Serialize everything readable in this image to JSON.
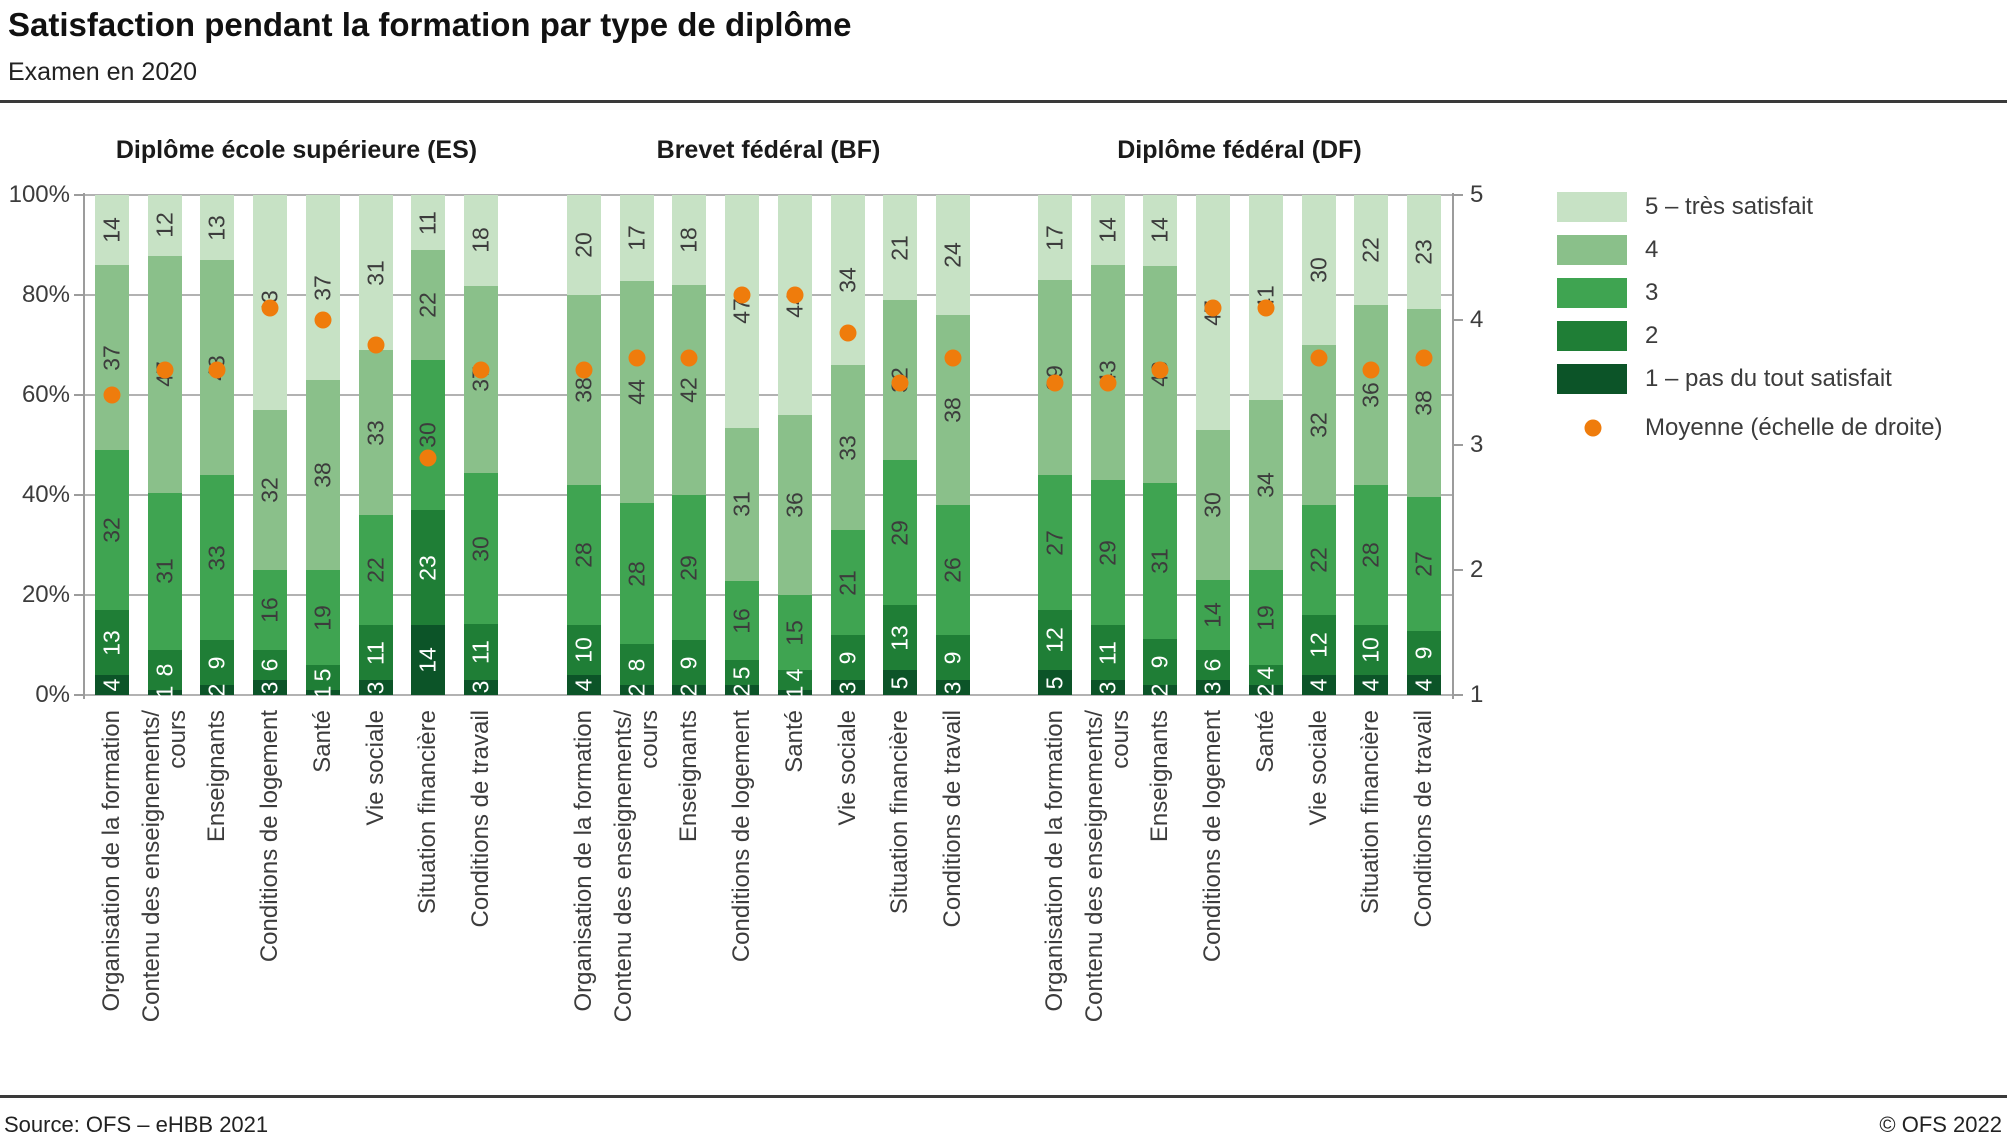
{
  "header": {
    "title": "Satisfaction pendant la formation par type de diplôme",
    "subtitle": "Examen en 2020"
  },
  "footer": {
    "source": "Source: OFS – eHBB 2021",
    "copyright": "© OFS 2022"
  },
  "legend": {
    "items": [
      {
        "label": "5 – très satisfait",
        "color": "#c7e2c5"
      },
      {
        "label": "4",
        "color": "#8ac08a"
      },
      {
        "label": "3",
        "color": "#3fa451"
      },
      {
        "label": "2",
        "color": "#1f7e36"
      },
      {
        "label": "1 – pas du tout satisfait",
        "color": "#0c5428"
      }
    ],
    "mean": {
      "label": "Moyenne  (échelle de droite)",
      "color": "#ef7c0c"
    }
  },
  "chart_data": {
    "type": "bar",
    "stacked": "percent",
    "title": "Satisfaction pendant la formation par type de diplôme",
    "subtitle": "Examen en 2020",
    "categories": [
      "Organisation de la formation",
      "Contenu des enseignements/\ncours",
      "Enseignants",
      "Conditions de logement",
      "Santé",
      "Vie sociale",
      "Situation financière",
      "Conditions de travail"
    ],
    "segments_bottom_to_top": [
      "1 – pas du tout satisfait",
      "2",
      "3",
      "4",
      "5 – très satisfait"
    ],
    "left_axis": {
      "ticks_top_to_bottom": [
        "100%",
        "80%",
        "60%",
        "40%",
        "20%",
        "0%"
      ],
      "range": [
        0,
        100
      ],
      "grid": true
    },
    "right_axis": {
      "ticks_top_to_bottom": [
        "5",
        "4",
        "3",
        "2",
        "1"
      ],
      "range": [
        1,
        5
      ],
      "label": "Moyenne  (échelle de droite)"
    },
    "groups": [
      {
        "title": "Diplôme école supérieure (ES)",
        "bars": [
          {
            "category": "Organisation de la formation",
            "values": [
              4,
              13,
              32,
              37,
              14
            ],
            "mean": 3.4
          },
          {
            "category": "Contenu des enseignements/cours",
            "values": [
              1,
              8,
              31,
              47,
              12
            ],
            "mean": 3.6
          },
          {
            "category": "Enseignants",
            "values": [
              2,
              9,
              33,
              43,
              13
            ],
            "mean": 3.6
          },
          {
            "category": "Conditions de logement",
            "values": [
              3,
              6,
              16,
              32,
              43
            ],
            "mean": 4.1
          },
          {
            "category": "Santé",
            "values": [
              1,
              5,
              19,
              38,
              37
            ],
            "mean": 4.0
          },
          {
            "category": "Vie sociale",
            "values": [
              3,
              11,
              22,
              33,
              31
            ],
            "mean": 3.8
          },
          {
            "category": "Situation financière",
            "values": [
              14,
              23,
              30,
              22,
              11
            ],
            "mean": 2.9
          },
          {
            "category": "Conditions de travail",
            "values": [
              3,
              11,
              30,
              37,
              18
            ],
            "mean": 3.6
          }
        ]
      },
      {
        "title": "Brevet fédéral (BF)",
        "bars": [
          {
            "category": "Organisation de la formation",
            "values": [
              4,
              10,
              28,
              38,
              20
            ],
            "mean": 3.6
          },
          {
            "category": "Contenu des enseignements/cours",
            "values": [
              2,
              8,
              28,
              44,
              17
            ],
            "mean": 3.7
          },
          {
            "category": "Enseignants",
            "values": [
              2,
              9,
              29,
              42,
              18
            ],
            "mean": 3.7
          },
          {
            "category": "Conditions de logement",
            "values": [
              2,
              5,
              16,
              31,
              47
            ],
            "mean": 4.2
          },
          {
            "category": "Santé",
            "values": [
              1,
              4,
              15,
              36,
              44
            ],
            "mean": 4.2
          },
          {
            "category": "Vie sociale",
            "values": [
              3,
              9,
              21,
              33,
              34
            ],
            "mean": 3.9
          },
          {
            "category": "Situation financière",
            "values": [
              5,
              13,
              29,
              32,
              21
            ],
            "mean": 3.5
          },
          {
            "category": "Conditions de travail",
            "values": [
              3,
              9,
              26,
              38,
              24
            ],
            "mean": 3.7
          }
        ]
      },
      {
        "title": "Diplôme fédéral (DF)",
        "bars": [
          {
            "category": "Organisation de la formation",
            "values": [
              5,
              12,
              27,
              39,
              17
            ],
            "mean": 3.5
          },
          {
            "category": "Contenu des enseignements/cours",
            "values": [
              3,
              11,
              29,
              43,
              14
            ],
            "mean": 3.5
          },
          {
            "category": "Enseignants",
            "values": [
              2,
              9,
              31,
              43,
              14
            ],
            "mean": 3.6
          },
          {
            "category": "Conditions de logement",
            "values": [
              3,
              6,
              14,
              30,
              47
            ],
            "mean": 4.1
          },
          {
            "category": "Santé",
            "values": [
              2,
              4,
              19,
              34,
              41
            ],
            "mean": 4.1
          },
          {
            "category": "Vie sociale",
            "values": [
              4,
              12,
              22,
              32,
              30
            ],
            "mean": 3.7
          },
          {
            "category": "Situation financière",
            "values": [
              4,
              10,
              28,
              36,
              22
            ],
            "mean": 3.6
          },
          {
            "category": "Conditions de travail",
            "values": [
              4,
              9,
              27,
              38,
              23
            ],
            "mean": 3.7
          }
        ]
      }
    ]
  }
}
